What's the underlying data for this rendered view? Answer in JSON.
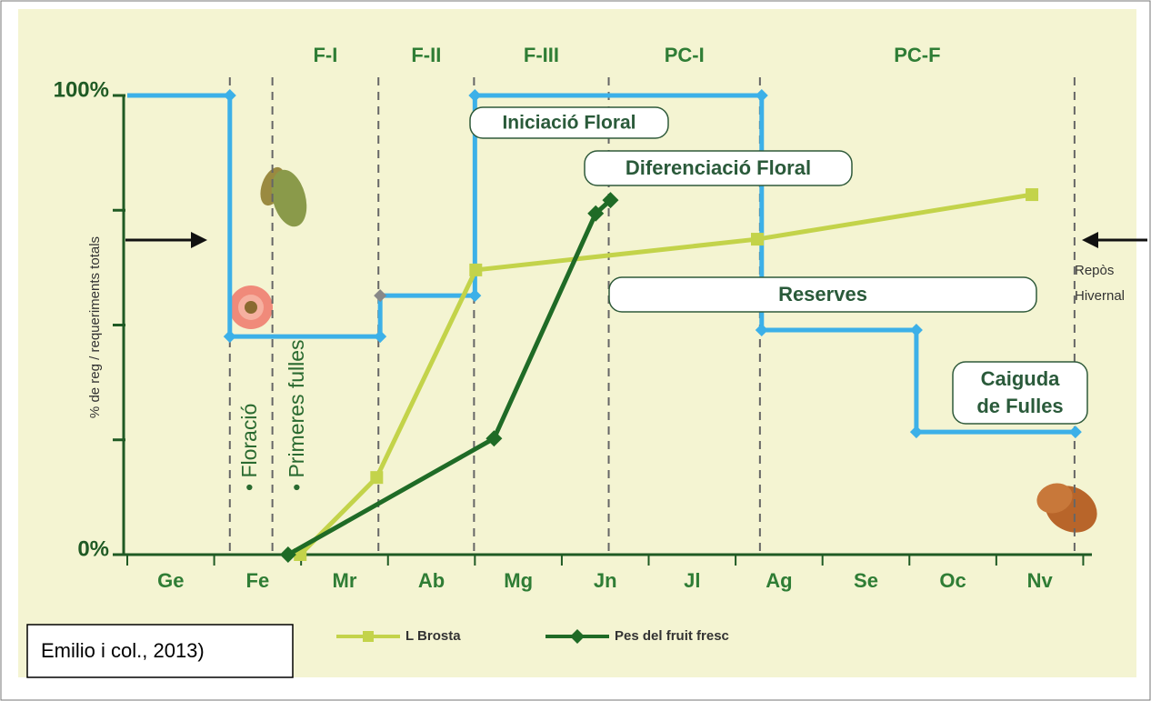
{
  "chart_data": {
    "type": "line",
    "y_label": "% de reg / requeriments totals",
    "categories": [
      "Ge",
      "Fe",
      "Mr",
      "Ab",
      "Mg",
      "Jn",
      "Jl",
      "Ag",
      "Se",
      "Oc",
      "Nv"
    ],
    "xlim": [
      0,
      11.1
    ],
    "ylim": [
      0,
      100
    ],
    "yticks": [
      {
        "value": 0,
        "label": "0%"
      },
      {
        "value": 100,
        "label": "100%"
      }
    ],
    "yminor_ticks": [
      25,
      50,
      75
    ],
    "phase_boundaries": [
      1.18,
      1.67,
      2.89,
      3.99,
      5.54,
      7.28,
      10.9
    ],
    "phases": [
      "F-I",
      "F-II",
      "F-III",
      "PC-I",
      "PC-F"
    ],
    "irrigation": {
      "color": "#3cb0e8",
      "x": [
        0,
        1.18,
        1.18,
        2.91,
        2.91,
        4.0,
        4.0,
        7.3,
        7.3,
        9.08,
        9.08,
        10.91
      ],
      "values": [
        100,
        100,
        47.5,
        47.5,
        56.4,
        56.4,
        100,
        100,
        48.9,
        48.9,
        26.7,
        26.7
      ]
    },
    "series": [
      {
        "name": "L Brosta",
        "color": "#c3d34a",
        "marker": "square",
        "x": [
          1.99,
          2.87,
          4.01,
          7.25,
          10.41
        ],
        "values": [
          0,
          16.8,
          62,
          68.7,
          78.4
        ]
      },
      {
        "name": "Pes del fruit fresc",
        "color": "#1f6b26",
        "marker": "diamond",
        "x": [
          1.85,
          4.22,
          5.39,
          5.56
        ],
        "values": [
          0,
          25.3,
          74.3,
          77.2
        ]
      }
    ],
    "annotations": {
      "iniciacio": "Iniciació Floral",
      "diferenciacio": "Diferenciació Floral",
      "reserves": "Reserves",
      "caiguda": [
        "Caiguda",
        "de Fulles"
      ],
      "repos": [
        "Repòs",
        "Hivernal"
      ],
      "floracio": "• Floració",
      "primeres": "• Primeres fulles"
    },
    "source": "Emilio i col., 2013)"
  }
}
